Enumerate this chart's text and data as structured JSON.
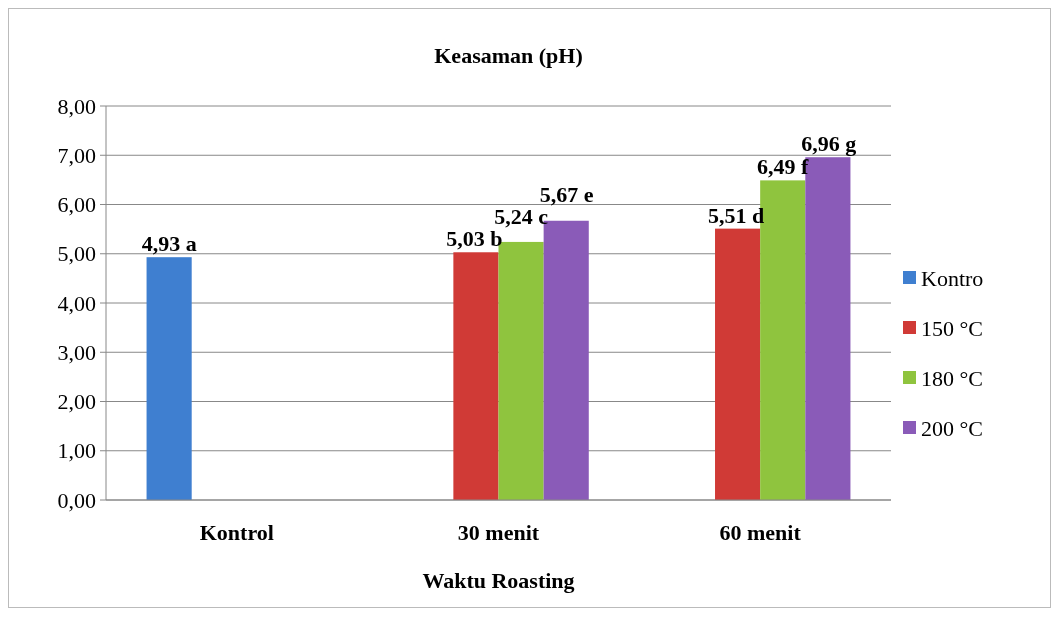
{
  "chart_data": {
    "type": "bar",
    "title": "Keasaman (pH)",
    "xlabel": "Waktu Roasting",
    "categories": [
      "Kontrol",
      "30 menit",
      "60 menit"
    ],
    "series": [
      {
        "name": "Kontro",
        "color": "#3f7fd0",
        "values": [
          4.93,
          null,
          null
        ],
        "value_labels": [
          "4,93 a",
          null,
          null
        ]
      },
      {
        "name": "150 °C",
        "color": "#d03a36",
        "values": [
          null,
          5.03,
          5.51
        ],
        "value_labels": [
          null,
          "5,03 b",
          "5,51 d"
        ]
      },
      {
        "name": "180 °C",
        "color": "#8fc43e",
        "values": [
          null,
          5.24,
          6.49
        ],
        "value_labels": [
          null,
          "5,24 c",
          "6,49 f"
        ]
      },
      {
        "name": "200 °C",
        "color": "#8a5bb8",
        "values": [
          null,
          5.67,
          6.96
        ],
        "value_labels": [
          null,
          "5,67 e",
          "6,96 g"
        ]
      }
    ],
    "ylim": [
      0,
      8
    ],
    "yticks": [
      {
        "value": 0,
        "label": "0,00"
      },
      {
        "value": 1,
        "label": "1,00"
      },
      {
        "value": 2,
        "label": "2,00"
      },
      {
        "value": 3,
        "label": "3,00"
      },
      {
        "value": 4,
        "label": "4,00"
      },
      {
        "value": 5,
        "label": "5,00"
      },
      {
        "value": 6,
        "label": "6,00"
      },
      {
        "value": 7,
        "label": "7,00"
      },
      {
        "value": 8,
        "label": "8,00"
      }
    ],
    "grid": "y",
    "legend": "right"
  }
}
